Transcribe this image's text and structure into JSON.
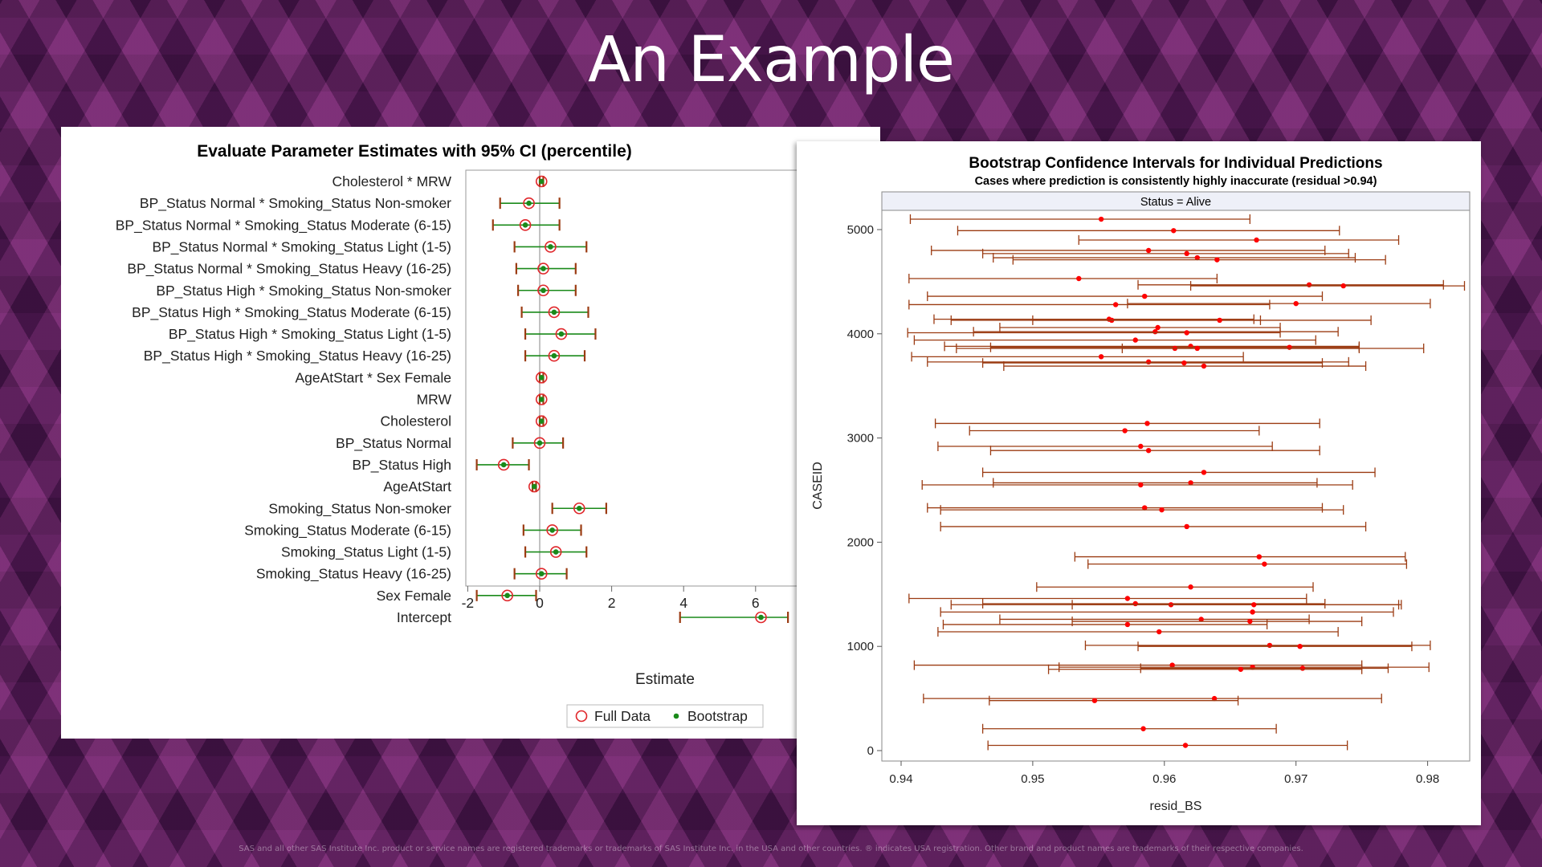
{
  "slide": {
    "title": "An Example",
    "footer": "SAS and all other SAS Institute Inc. product or service names are registered trademarks or trademarks of SAS Institute Inc. in the USA and other countries. ® indicates USA registration. Other brand and product names are trademarks of their respective companies."
  },
  "colors": {
    "background": "#4e1a52",
    "full_data_marker": "#e0262a",
    "bootstrap_marker": "#1a8a1a",
    "interval_red": "#9b3b12",
    "point_red": "#ff0000"
  },
  "chart_data": [
    {
      "type": "forest",
      "title": "Evaluate Parameter Estimates with 95% CI (percentile)",
      "xlabel": "Estimate",
      "xlim": [
        -2.4,
        6.9
      ],
      "xticks": [
        -2,
        0,
        2,
        4,
        6
      ],
      "reference_line": 0,
      "legend": {
        "position": "bottom-right",
        "entries": [
          "Full Data",
          "Bootstrap"
        ]
      },
      "categories": [
        "Cholesterol * MRW",
        "BP_Status Normal * Smoking_Status Non-smoker",
        "BP_Status Normal * Smoking_Status Moderate (6-15)",
        "BP_Status Normal * Smoking_Status Light (1-5)",
        "BP_Status Normal * Smoking_Status Heavy (16-25)",
        "BP_Status High * Smoking_Status Non-smoker",
        "BP_Status High * Smoking_Status Moderate (6-15)",
        "BP_Status High * Smoking_Status Light (1-5)",
        "BP_Status High * Smoking_Status Heavy (16-25)",
        "AgeAtStart * Sex Female",
        "MRW",
        "Cholesterol",
        "BP_Status Normal",
        "BP_Status High",
        "AgeAtStart",
        "Smoking_Status Non-smoker",
        "Smoking_Status Moderate (6-15)",
        "Smoking_Status Light (1-5)",
        "Smoking_Status Heavy (16-25)",
        "Sex Female",
        "Intercept"
      ],
      "series": [
        {
          "name": "Full Data",
          "values": [
            0.05,
            -0.3,
            -0.4,
            0.3,
            0.1,
            0.1,
            0.4,
            0.6,
            0.4,
            0.05,
            0.05,
            0.05,
            0.0,
            -1.0,
            -0.15,
            1.1,
            0.35,
            0.45,
            0.05,
            -0.9,
            6.15
          ]
        },
        {
          "name": "Bootstrap",
          "values": [
            0.05,
            -0.3,
            -0.4,
            0.3,
            0.1,
            0.1,
            0.4,
            0.6,
            0.4,
            0.05,
            0.05,
            0.05,
            0.0,
            -1.0,
            -0.15,
            1.1,
            0.35,
            0.45,
            0.05,
            -0.9,
            6.15
          ]
        }
      ],
      "ci_lower": [
        0.0,
        -1.1,
        -1.3,
        -0.7,
        -0.65,
        -0.6,
        -0.5,
        -0.4,
        -0.4,
        0.0,
        0.0,
        0.0,
        -0.75,
        -1.75,
        -0.2,
        0.35,
        -0.45,
        -0.4,
        -0.7,
        -1.75,
        3.9
      ],
      "ci_upper": [
        0.1,
        0.55,
        0.55,
        1.3,
        1.0,
        1.0,
        1.35,
        1.55,
        1.25,
        0.1,
        0.1,
        0.1,
        0.65,
        -0.3,
        -0.1,
        1.85,
        1.15,
        1.3,
        0.75,
        -0.1,
        6.9
      ]
    },
    {
      "type": "interval",
      "title": "Bootstrap Confidence Intervals for Individual Predictions",
      "subtitle": "Cases where prediction is consistently highly inaccurate (residual >0.94)",
      "panel_label": "Status = Alive",
      "xlabel": "resid_BS",
      "ylabel": "CASEID",
      "xlim": [
        0.939,
        0.9835
      ],
      "ylim": [
        -100,
        5230
      ],
      "xticks": [
        0.94,
        0.95,
        0.96,
        0.97,
        0.98
      ],
      "yticks": [
        0,
        1000,
        2000,
        3000,
        4000,
        5000
      ],
      "intervals": [
        {
          "y": 5100,
          "lo": 0.9407,
          "hi": 0.9665,
          "est": 0.9552
        },
        {
          "y": 4990,
          "lo": 0.9443,
          "hi": 0.9733,
          "est": 0.9607
        },
        {
          "y": 4900,
          "lo": 0.9535,
          "hi": 0.9778,
          "est": 0.967
        },
        {
          "y": 4800,
          "lo": 0.9423,
          "hi": 0.9722,
          "est": 0.9588
        },
        {
          "y": 4770,
          "lo": 0.9462,
          "hi": 0.974,
          "est": 0.9617
        },
        {
          "y": 4730,
          "lo": 0.947,
          "hi": 0.9745,
          "est": 0.9625
        },
        {
          "y": 4710,
          "lo": 0.9485,
          "hi": 0.9768,
          "est": 0.964
        },
        {
          "y": 4530,
          "lo": 0.9406,
          "hi": 0.964,
          "est": 0.9535
        },
        {
          "y": 4470,
          "lo": 0.958,
          "hi": 0.9812,
          "est": 0.971
        },
        {
          "y": 4460,
          "lo": 0.962,
          "hi": 0.9828,
          "est": 0.9736
        },
        {
          "y": 4360,
          "lo": 0.942,
          "hi": 0.972,
          "est": 0.9585
        },
        {
          "y": 4290,
          "lo": 0.9572,
          "hi": 0.9802,
          "est": 0.97
        },
        {
          "y": 4280,
          "lo": 0.9406,
          "hi": 0.968,
          "est": 0.9563
        },
        {
          "y": 4140,
          "lo": 0.9425,
          "hi": 0.9668,
          "est": 0.9558
        },
        {
          "y": 4130,
          "lo": 0.9438,
          "hi": 0.9673,
          "est": 0.956
        },
        {
          "y": 4130,
          "lo": 0.95,
          "hi": 0.9757,
          "est": 0.9642
        },
        {
          "y": 4060,
          "lo": 0.9475,
          "hi": 0.9688,
          "est": 0.9595
        },
        {
          "y": 4020,
          "lo": 0.9455,
          "hi": 0.9732,
          "est": 0.9593
        },
        {
          "y": 4010,
          "lo": 0.9405,
          "hi": 0.9688,
          "est": 0.9617
        },
        {
          "y": 3940,
          "lo": 0.941,
          "hi": 0.9715,
          "est": 0.9578
        },
        {
          "y": 3880,
          "lo": 0.9433,
          "hi": 0.9748,
          "est": 0.962
        },
        {
          "y": 3870,
          "lo": 0.9468,
          "hi": 0.9748,
          "est": 0.9695
        },
        {
          "y": 3860,
          "lo": 0.9568,
          "hi": 0.9797,
          "est": 0.9608
        },
        {
          "y": 3860,
          "lo": 0.9442,
          "hi": 0.9748,
          "est": 0.9625
        },
        {
          "y": 3780,
          "lo": 0.9408,
          "hi": 0.966,
          "est": 0.9552
        },
        {
          "y": 3730,
          "lo": 0.942,
          "hi": 0.974,
          "est": 0.9588
        },
        {
          "y": 3720,
          "lo": 0.9462,
          "hi": 0.972,
          "est": 0.9615
        },
        {
          "y": 3690,
          "lo": 0.9478,
          "hi": 0.9753,
          "est": 0.963
        },
        {
          "y": 3140,
          "lo": 0.9426,
          "hi": 0.9718,
          "est": 0.9587
        },
        {
          "y": 3070,
          "lo": 0.9452,
          "hi": 0.9672,
          "est": 0.957
        },
        {
          "y": 2920,
          "lo": 0.9428,
          "hi": 0.9682,
          "est": 0.9582
        },
        {
          "y": 2880,
          "lo": 0.9468,
          "hi": 0.9718,
          "est": 0.9588
        },
        {
          "y": 2670,
          "lo": 0.9462,
          "hi": 0.976,
          "est": 0.963
        },
        {
          "y": 2570,
          "lo": 0.947,
          "hi": 0.9716,
          "est": 0.962
        },
        {
          "y": 2550,
          "lo": 0.9416,
          "hi": 0.9743,
          "est": 0.9582
        },
        {
          "y": 2330,
          "lo": 0.942,
          "hi": 0.972,
          "est": 0.9585
        },
        {
          "y": 2310,
          "lo": 0.943,
          "hi": 0.9736,
          "est": 0.9598
        },
        {
          "y": 2150,
          "lo": 0.943,
          "hi": 0.9753,
          "est": 0.9617
        },
        {
          "y": 1860,
          "lo": 0.9532,
          "hi": 0.9783,
          "est": 0.9672
        },
        {
          "y": 1790,
          "lo": 0.9542,
          "hi": 0.9784,
          "est": 0.9676
        },
        {
          "y": 1570,
          "lo": 0.9503,
          "hi": 0.9713,
          "est": 0.962
        },
        {
          "y": 1460,
          "lo": 0.9406,
          "hi": 0.9708,
          "est": 0.9572
        },
        {
          "y": 1410,
          "lo": 0.9462,
          "hi": 0.9722,
          "est": 0.9578
        },
        {
          "y": 1400,
          "lo": 0.9438,
          "hi": 0.978,
          "est": 0.9605
        },
        {
          "y": 1400,
          "lo": 0.953,
          "hi": 0.9778,
          "est": 0.9668
        },
        {
          "y": 1330,
          "lo": 0.943,
          "hi": 0.9774,
          "est": 0.9667
        },
        {
          "y": 1260,
          "lo": 0.9475,
          "hi": 0.971,
          "est": 0.9628
        },
        {
          "y": 1240,
          "lo": 0.953,
          "hi": 0.975,
          "est": 0.9665
        },
        {
          "y": 1210,
          "lo": 0.9432,
          "hi": 0.9678,
          "est": 0.9572
        },
        {
          "y": 1140,
          "lo": 0.9428,
          "hi": 0.9732,
          "est": 0.9596
        },
        {
          "y": 1010,
          "lo": 0.954,
          "hi": 0.9802,
          "est": 0.968
        },
        {
          "y": 1000,
          "lo": 0.958,
          "hi": 0.9788,
          "est": 0.9703
        },
        {
          "y": 820,
          "lo": 0.941,
          "hi": 0.975,
          "est": 0.9606
        },
        {
          "y": 800,
          "lo": 0.952,
          "hi": 0.9801,
          "est": 0.9667
        },
        {
          "y": 790,
          "lo": 0.9582,
          "hi": 0.977,
          "est": 0.9705
        },
        {
          "y": 780,
          "lo": 0.9512,
          "hi": 0.975,
          "est": 0.9658
        },
        {
          "y": 500,
          "lo": 0.9417,
          "hi": 0.9765,
          "est": 0.9638
        },
        {
          "y": 480,
          "lo": 0.9467,
          "hi": 0.9656,
          "est": 0.9547
        },
        {
          "y": 210,
          "lo": 0.9462,
          "hi": 0.9685,
          "est": 0.9584
        },
        {
          "y": 50,
          "lo": 0.9466,
          "hi": 0.9739,
          "est": 0.9616
        }
      ]
    }
  ]
}
